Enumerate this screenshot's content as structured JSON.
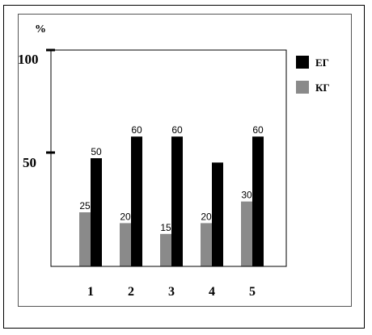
{
  "chart_data": {
    "type": "bar",
    "title": "",
    "ylabel": "%",
    "xlabel": "",
    "ylim": [
      0,
      100
    ],
    "yticks": [
      "100",
      "50"
    ],
    "categories": [
      "1",
      "2",
      "3",
      "4",
      "5"
    ],
    "series": [
      {
        "name": "КГ",
        "values": [
          25,
          20,
          15,
          20,
          30
        ],
        "color": "#8a8a8a"
      },
      {
        "name": "ЕГ",
        "values": [
          50,
          60,
          60,
          48,
          60
        ],
        "color": "#000000"
      }
    ],
    "data_labels": [
      [
        "25",
        "20",
        "15",
        "20",
        "30"
      ],
      [
        "50",
        "60",
        "60",
        "",
        "60"
      ]
    ],
    "legend": {
      "position": "right",
      "entries": [
        "ЕГ",
        "КГ"
      ]
    },
    "grid": false
  }
}
